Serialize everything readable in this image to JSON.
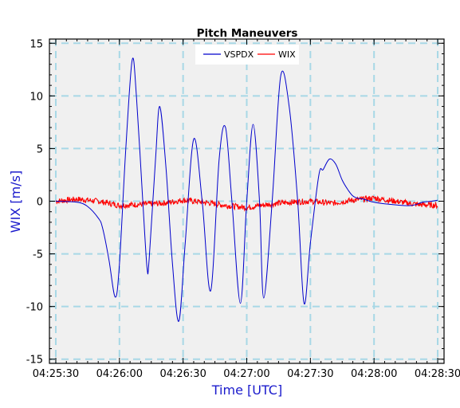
{
  "chart_data": {
    "type": "line",
    "title": "Pitch Maneuvers",
    "xlabel": "Time [UTC]",
    "ylabel": "WIX [m/s]",
    "x_tick_labels": [
      "04:25:30",
      "04:26:00",
      "04:26:30",
      "04:27:00",
      "04:27:30",
      "04:28:00",
      "04:28:30"
    ],
    "y_tick_labels": [
      "-15",
      "-10",
      "-5",
      "0",
      "5",
      "10",
      "15"
    ],
    "y_ticks": [
      -15,
      -10,
      -5,
      0,
      5,
      10,
      15
    ],
    "xlim": [
      "04:25:27",
      "04:28:33"
    ],
    "ylim": [
      -15.4,
      15.4
    ],
    "grid": true,
    "legend_position": "top-center",
    "colors": {
      "plot_background": "#f0f0f0",
      "grid": "#a8d8e6",
      "axis_label": "#1a1acc",
      "series": [
        "#0000cc",
        "#ff0000"
      ]
    },
    "series": [
      {
        "name": "VSPDX",
        "color": "#0000cc",
        "x": [
          "04:25:30",
          "04:25:40",
          "04:25:45",
          "04:25:50",
          "04:25:52",
          "04:25:55",
          "04:25:58",
          "04:26:00",
          "04:26:03",
          "04:26:06",
          "04:26:08",
          "04:26:11",
          "04:26:13",
          "04:26:14",
          "04:26:17",
          "04:26:19",
          "04:26:22",
          "04:26:25",
          "04:26:28",
          "04:26:31",
          "04:26:35",
          "04:26:39",
          "04:26:43",
          "04:26:47",
          "04:26:50",
          "04:26:53",
          "04:26:57",
          "04:27:00",
          "04:27:03",
          "04:27:06",
          "04:27:08",
          "04:27:12",
          "04:27:16",
          "04:27:20",
          "04:27:24",
          "04:27:27",
          "04:27:30",
          "04:27:34",
          "04:27:36",
          "04:27:39",
          "04:27:42",
          "04:27:45",
          "04:27:48",
          "04:27:50",
          "04:27:52",
          "04:27:55",
          "04:27:58",
          "04:28:00",
          "04:28:03",
          "04:28:08",
          "04:28:13",
          "04:28:18",
          "04:28:23",
          "04:28:27",
          "04:28:30"
        ],
        "y": [
          0,
          -0.1,
          -0.5,
          -1.6,
          -2.5,
          -5.5,
          -9.1,
          -6.0,
          5.0,
          13.4,
          10.0,
          0,
          -6.3,
          -5.5,
          4.0,
          9.0,
          3.0,
          -6.0,
          -11.4,
          -4.0,
          5.9,
          0,
          -8.5,
          4.0,
          7.0,
          0,
          -9.7,
          0,
          7.3,
          0,
          -9.2,
          0,
          11.9,
          9.0,
          0,
          -9.7,
          -4.0,
          2.5,
          3.0,
          4.0,
          3.5,
          2.0,
          1.0,
          0.5,
          0.3,
          0.2,
          0,
          -0.1,
          -0.2,
          -0.3,
          -0.4,
          -0.4,
          -0.1,
          0,
          0.1
        ]
      },
      {
        "name": "WIX",
        "color": "#ff0000",
        "x": [
          "04:25:30",
          "04:25:40",
          "04:25:50",
          "04:26:00",
          "04:26:10",
          "04:26:20",
          "04:26:30",
          "04:26:40",
          "04:26:50",
          "04:27:00",
          "04:27:10",
          "04:27:20",
          "04:27:30",
          "04:27:40",
          "04:27:50",
          "04:28:00",
          "04:28:10",
          "04:28:20",
          "04:28:30"
        ],
        "y": [
          0,
          0.2,
          0,
          -0.4,
          -0.3,
          -0.2,
          0.1,
          -0.1,
          -0.4,
          -0.6,
          -0.3,
          -0.1,
          0,
          -0.2,
          0.1,
          0.3,
          0,
          -0.3,
          -0.4
        ]
      }
    ]
  }
}
